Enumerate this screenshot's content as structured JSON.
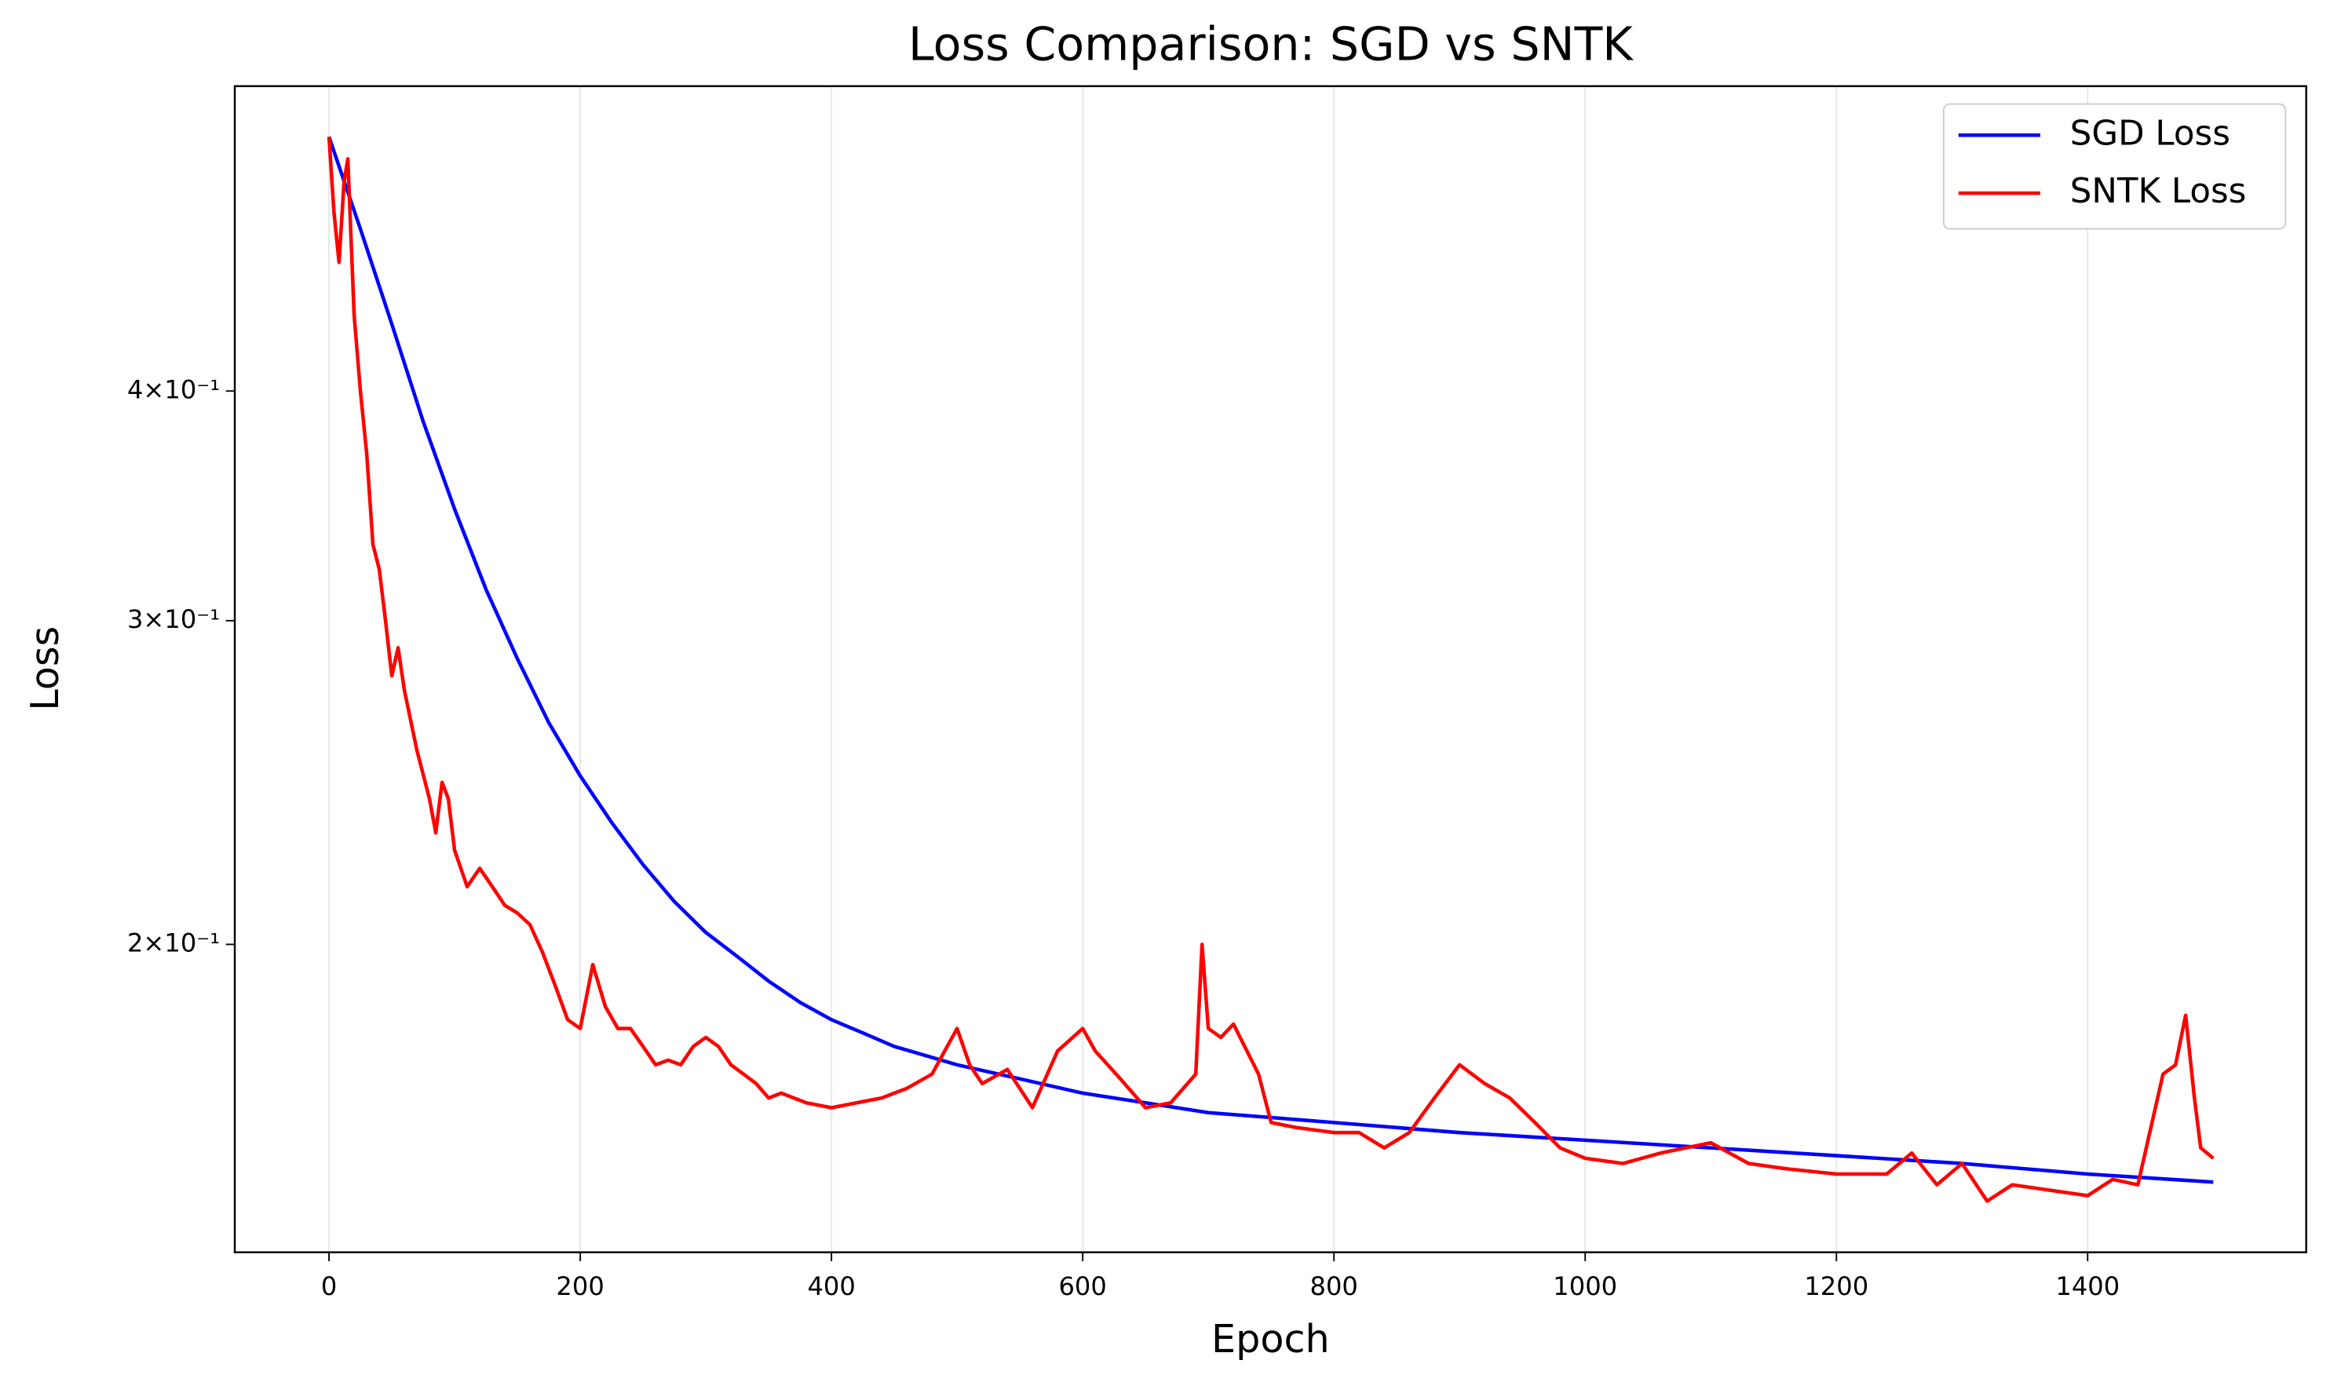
{
  "chart_data": {
    "type": "line",
    "title": "Loss Comparison: SGD vs SNTK",
    "xlabel": "Epoch",
    "ylabel": "Loss",
    "xlim": [
      -75,
      1574
    ],
    "xticks": [
      0,
      200,
      400,
      600,
      800,
      1000,
      1200,
      1400
    ],
    "ylim": [
      0.136,
      0.586
    ],
    "yscale": "log",
    "yticks": [
      {
        "value": 0.2,
        "label": "2×10⁻¹"
      },
      {
        "value": 0.3,
        "label": "3×10⁻¹"
      },
      {
        "value": 0.4,
        "label": "4×10⁻¹"
      }
    ],
    "grid": "x",
    "legend": "upper right",
    "series": [
      {
        "name": "SGD Loss",
        "color": "#0000ff",
        "x": [
          0,
          25,
          50,
          75,
          100,
          125,
          150,
          175,
          200,
          225,
          250,
          275,
          300,
          325,
          350,
          375,
          400,
          425,
          450,
          475,
          500,
          550,
          600,
          650,
          700,
          750,
          800,
          900,
          1000,
          1100,
          1200,
          1300,
          1400,
          1500
        ],
        "values": [
          0.55,
          0.49,
          0.435,
          0.385,
          0.345,
          0.312,
          0.286,
          0.264,
          0.247,
          0.233,
          0.221,
          0.211,
          0.203,
          0.197,
          0.191,
          0.186,
          0.182,
          0.179,
          0.176,
          0.174,
          0.172,
          0.169,
          0.166,
          0.164,
          0.162,
          0.161,
          0.16,
          0.158,
          0.1565,
          0.155,
          0.1535,
          0.152,
          0.15,
          0.1485
        ]
      },
      {
        "name": "SNTK Loss",
        "color": "#ff0000",
        "x": [
          0,
          4,
          8,
          12,
          15,
          20,
          25,
          30,
          35,
          40,
          45,
          50,
          55,
          60,
          70,
          80,
          85,
          90,
          95,
          100,
          110,
          120,
          130,
          140,
          150,
          160,
          170,
          180,
          190,
          200,
          210,
          220,
          230,
          240,
          250,
          260,
          270,
          280,
          290,
          300,
          310,
          320,
          330,
          340,
          350,
          360,
          380,
          400,
          420,
          440,
          460,
          480,
          500,
          510,
          520,
          540,
          560,
          580,
          600,
          610,
          630,
          650,
          670,
          690,
          695,
          700,
          710,
          720,
          740,
          750,
          770,
          800,
          820,
          840,
          860,
          880,
          900,
          920,
          940,
          960,
          980,
          1000,
          1030,
          1060,
          1100,
          1130,
          1160,
          1200,
          1240,
          1260,
          1280,
          1300,
          1320,
          1340,
          1370,
          1400,
          1420,
          1440,
          1460,
          1470,
          1478,
          1485,
          1490,
          1500
        ],
        "values": [
          0.55,
          0.5,
          0.47,
          0.52,
          0.535,
          0.44,
          0.4,
          0.37,
          0.33,
          0.32,
          0.3,
          0.28,
          0.29,
          0.275,
          0.255,
          0.24,
          0.23,
          0.245,
          0.24,
          0.225,
          0.215,
          0.22,
          0.215,
          0.21,
          0.208,
          0.205,
          0.198,
          0.19,
          0.182,
          0.18,
          0.195,
          0.185,
          0.18,
          0.18,
          0.176,
          0.172,
          0.173,
          0.172,
          0.176,
          0.178,
          0.176,
          0.172,
          0.17,
          0.168,
          0.165,
          0.166,
          0.164,
          0.163,
          0.164,
          0.165,
          0.167,
          0.17,
          0.18,
          0.172,
          0.168,
          0.171,
          0.163,
          0.175,
          0.18,
          0.175,
          0.169,
          0.163,
          0.164,
          0.17,
          0.2,
          0.18,
          0.178,
          0.181,
          0.17,
          0.16,
          0.159,
          0.158,
          0.158,
          0.155,
          0.158,
          0.165,
          0.172,
          0.168,
          0.165,
          0.16,
          0.155,
          0.153,
          0.152,
          0.154,
          0.156,
          0.152,
          0.151,
          0.15,
          0.15,
          0.154,
          0.148,
          0.152,
          0.145,
          0.148,
          0.147,
          0.146,
          0.149,
          0.148,
          0.17,
          0.172,
          0.183,
          0.165,
          0.155,
          0.153
        ]
      }
    ]
  }
}
